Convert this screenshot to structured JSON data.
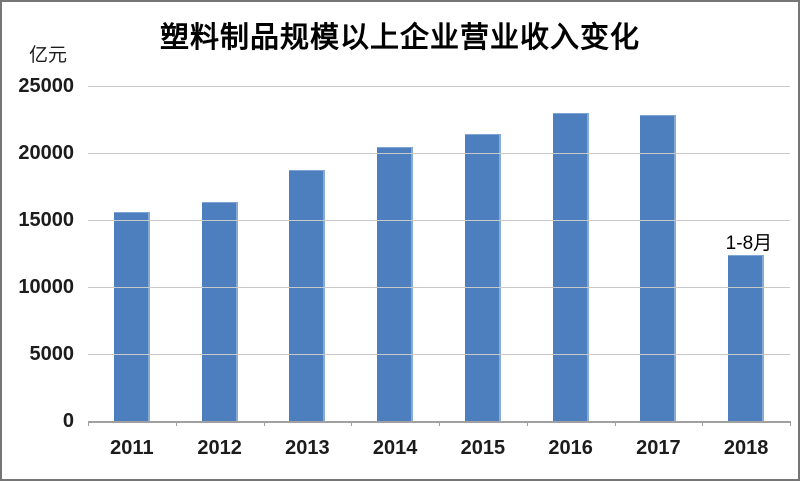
{
  "title": "塑料制品规模以上企业营业收入变化",
  "unit_label": "亿元",
  "colors": {
    "bar_fill": "#4d7ebd",
    "bar_edge": "#88abd6",
    "gridline": "#c9c9c9",
    "axis": "#a0a0a0",
    "text": "#1c1c1c",
    "frame_border": "#757575"
  },
  "chart_data": {
    "type": "bar",
    "title": "塑料制品规模以上企业营业收入变化",
    "categories": [
      "2011",
      "2012",
      "2013",
      "2014",
      "2015",
      "2016",
      "2017",
      "2018"
    ],
    "values": [
      15600,
      16350,
      18700,
      20450,
      21450,
      22950,
      22800,
      12400
    ],
    "xlabel": "",
    "ylabel": "亿元",
    "ylim": [
      0,
      25000
    ],
    "yticks": [
      0,
      5000,
      10000,
      15000,
      20000,
      25000
    ],
    "grid": true,
    "legend_position": "none",
    "annotations": [
      {
        "category": "2018",
        "text": "1-8月"
      }
    ]
  }
}
